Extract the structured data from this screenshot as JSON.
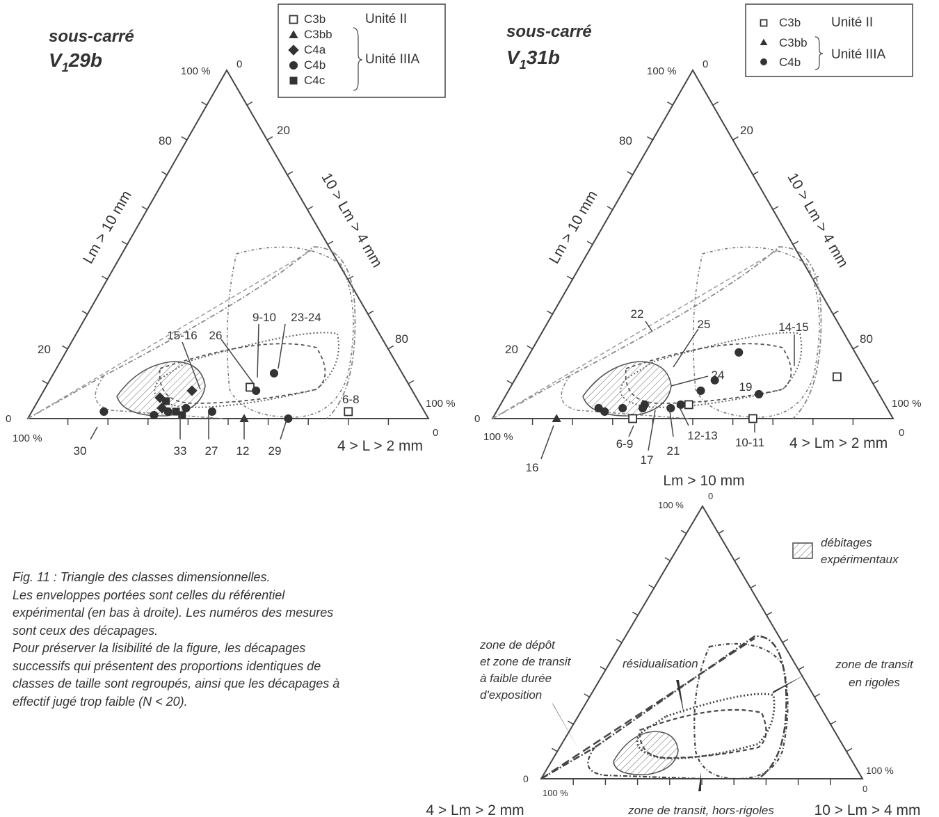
{
  "panels": [
    {
      "title": "sous-carré",
      "subtitle_main": "V",
      "subtitle_sub": "1",
      "subtitle_rest": "29b",
      "axis_label_left": "Lm > 10 mm",
      "axis_label_right": "10 > Lm > 4 mm",
      "axis_label_bottom": "4 > L > 2 mm",
      "label_apex_pct": "100 %",
      "label_apex_zero": "0",
      "label_left_zero": "0",
      "label_left_pct": "100 %",
      "label_right_pct": "100 %",
      "label_right_zero": "0",
      "left_ticks": [
        "80",
        "20"
      ],
      "right_ticks": [
        "20",
        "80"
      ],
      "legend": {
        "rows": [
          {
            "marker": "open-square",
            "label": "C3b"
          },
          {
            "marker": "triangle",
            "label": "C3bb"
          },
          {
            "marker": "diamond",
            "label": "C4a"
          },
          {
            "marker": "circle",
            "label": "C4b"
          },
          {
            "marker": "square",
            "label": "C4c"
          }
        ],
        "unit_ii": "Unité II",
        "unit_iiia": "Unité IIIA"
      },
      "point_labels": [
        "9-10",
        "23-24",
        "15-16",
        "26",
        "6-8",
        "30",
        "33",
        "27",
        "12",
        "29"
      ]
    },
    {
      "title": "sous-carré",
      "subtitle_main": "V",
      "subtitle_sub": "1",
      "subtitle_rest": "31b",
      "axis_label_left": "Lm > 10 mm",
      "axis_label_right": "10 > Lm > 4 mm",
      "axis_label_bottom": "4 > Lm > 2 mm",
      "label_apex_pct": "100 %",
      "label_apex_zero": "0",
      "label_left_zero": "0",
      "label_left_pct": "100 %",
      "label_right_pct": "100 %",
      "label_right_zero": "0",
      "left_ticks": [
        "80",
        "20"
      ],
      "right_ticks": [
        "20",
        "80"
      ],
      "legend": {
        "rows": [
          {
            "marker": "open-square",
            "label": "C3b"
          },
          {
            "marker": "triangle",
            "label": "C3bb"
          },
          {
            "marker": "circle",
            "label": "C4b"
          }
        ],
        "unit_ii": "Unité II",
        "unit_iiia": "Unité IIIA"
      },
      "point_labels": [
        "22",
        "25",
        "24",
        "19",
        "14-15",
        "16",
        "6-9",
        "17",
        "21",
        "12-13",
        "10-11"
      ]
    },
    {
      "axis_label_top": "Lm > 10 mm",
      "axis_label_left": "4 > Lm > 2 mm",
      "axis_label_right": "10 > Lm > 4 mm",
      "label_apex_pct": "100 %",
      "label_apex_zero": "0",
      "label_left_zero": "0",
      "label_left_pct": "100 %",
      "label_right_pct": "100 %",
      "label_right_zero": "0",
      "legend_hatched_line1": "débitages",
      "legend_hatched_line2": "expérimentaux",
      "zones": {
        "depot_lines": [
          "zone de dépôt",
          "et zone de transit",
          "à faible durée",
          "d'exposition"
        ],
        "residualisation": "résidualisation",
        "rigoles_lines": [
          "zone de transit",
          "en rigoles"
        ],
        "hors_rigoles": "zone de transit, hors-rigoles"
      }
    }
  ],
  "caption": [
    "Fig. 11 : Triangle des classes dimensionnelles.",
    "Les enveloppes portées sont celles du référentiel",
    "expérimental (en bas à droite). Les numéros des mesures",
    "sont ceux des décapages.",
    "Pour préserver la lisibilité de la figure, les décapages",
    "successifs qui présentent des proportions identiques de",
    "classes de taille sont regroupés, ainsi que les décapages à",
    "effectif jugé trop faible (N < 20)."
  ],
  "chart_data": [
    {
      "type": "scatter",
      "subtype": "ternary",
      "title": "sous-carré V129b",
      "axes": [
        "Lm > 10 mm",
        "10 > Lm > 4 mm",
        "4 > L > 2 mm"
      ],
      "series": [
        {
          "name": "C3b",
          "marker": "open-square",
          "points": [
            {
              "label": "9-10",
              "top": 9,
              "right": 51
            },
            {
              "label": "6-8",
              "top": 2,
              "right": 79
            }
          ]
        },
        {
          "name": "C3bb",
          "marker": "triangle",
          "points": [
            {
              "label": "12",
              "top": 0,
              "right": 54
            }
          ]
        },
        {
          "name": "C4a",
          "marker": "diamond",
          "points": [
            {
              "label": "15-16",
              "top": 8,
              "right": 37
            },
            {
              "label": "15-16",
              "top": 6,
              "right": 30
            },
            {
              "label": "15-16",
              "top": 3,
              "right": 32
            }
          ]
        },
        {
          "name": "C4b",
          "marker": "circle",
          "points": [
            {
              "label": "23-24",
              "top": 13,
              "right": 55
            },
            {
              "label": "26",
              "top": 8,
              "right": 53
            },
            {
              "label": "30",
              "top": 2,
              "right": 18
            },
            {
              "label": "33",
              "top": 3,
              "right": 38
            },
            {
              "label": "33",
              "top": 2,
              "right": 34
            },
            {
              "label": "27",
              "top": 2,
              "right": 45
            },
            {
              "label": "29",
              "top": 0,
              "right": 65
            },
            {
              "label": "33",
              "top": 1,
              "right": 31
            }
          ]
        },
        {
          "name": "C4c",
          "marker": "square",
          "points": [
            {
              "label": "15-16",
              "top": 5,
              "right": 32
            },
            {
              "label": "33",
              "top": 2,
              "right": 36
            },
            {
              "label": "33",
              "top": 1,
              "right": 38
            }
          ]
        }
      ],
      "envelopes": [
        "débitages expérimentaux",
        "zone de dépôt et zone de transit à faible durée d'exposition",
        "résidualisation",
        "zone de transit en rigoles",
        "zone de transit, hors-rigoles"
      ]
    },
    {
      "type": "scatter",
      "subtype": "ternary",
      "title": "sous-carré V131b",
      "axes": [
        "Lm > 10 mm",
        "10 > Lm > 4 mm",
        "4 > Lm > 2 mm"
      ],
      "series": [
        {
          "name": "C3b",
          "marker": "open-square",
          "points": [
            {
              "label": "14-15",
              "top": 12,
              "right": 80
            },
            {
              "label": "12-13",
              "top": 4,
              "right": 47
            },
            {
              "label": "6-9",
              "top": 0,
              "right": 35
            },
            {
              "label": "10-11",
              "top": 0,
              "right": 65
            }
          ]
        },
        {
          "name": "C3bb",
          "marker": "triangle",
          "points": [
            {
              "label": "16",
              "top": 0,
              "right": 16
            }
          ]
        },
        {
          "name": "C4b",
          "marker": "circle",
          "points": [
            {
              "label": "22",
              "top": 19,
              "right": 52
            },
            {
              "label": "25",
              "top": 11,
              "right": 50
            },
            {
              "label": "24",
              "top": 8,
              "right": 48
            },
            {
              "label": "19",
              "top": 7,
              "right": 63
            },
            {
              "label": "21",
              "top": 4,
              "right": 45
            },
            {
              "label": "17",
              "top": 3,
              "right": 43
            },
            {
              "label": "6-9",
              "top": 3,
              "right": 36
            },
            {
              "label": "6-9",
              "top": 4,
              "right": 36
            },
            {
              "label": "6-9",
              "top": 3,
              "right": 31
            },
            {
              "label": "6-9",
              "top": 2,
              "right": 27
            },
            {
              "label": "6-9",
              "top": 3,
              "right": 25
            }
          ]
        }
      ]
    },
    {
      "type": "scatter",
      "subtype": "ternary",
      "title": "",
      "axes": [
        "Lm > 10 mm",
        "10 > Lm > 4 mm",
        "4 > Lm > 2 mm"
      ],
      "envelopes": [
        "débitages expérimentaux",
        "zone de dépôt et zone de transit à faible durée d'exposition",
        "résidualisation",
        "zone de transit en rigoles",
        "zone de transit, hors-rigoles"
      ]
    }
  ]
}
